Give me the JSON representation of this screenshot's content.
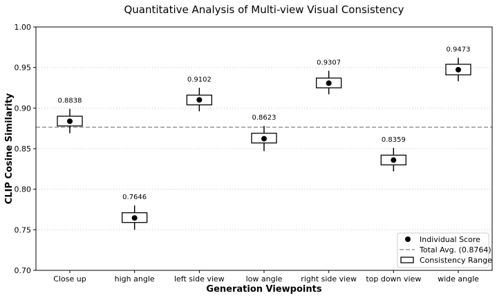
{
  "chart_data": {
    "type": "scatter",
    "title": "Quantitative Analysis of Multi-view Visual Consistency",
    "xlabel": "Generation Viewpoints",
    "ylabel": "CLIP Cosine Similarity",
    "ylim": [
      0.7,
      1.0
    ],
    "yticks": [
      "0.70",
      "0.75",
      "0.80",
      "0.85",
      "0.90",
      "0.95",
      "1.00"
    ],
    "grid": true,
    "categories": [
      "Close up",
      "high angle",
      "left side view",
      "low angle",
      "right side view",
      "top down view",
      "wide angle"
    ],
    "values": [
      0.8838,
      0.7646,
      0.9102,
      0.8623,
      0.9307,
      0.8359,
      0.9473
    ],
    "value_labels": [
      "0.8838",
      "0.7646",
      "0.9102",
      "0.8623",
      "0.9307",
      "0.8359",
      "0.9473"
    ],
    "consistency_range": [
      [
        0.878,
        0.89
      ],
      [
        0.759,
        0.771
      ],
      [
        0.904,
        0.916
      ],
      [
        0.857,
        0.869
      ],
      [
        0.925,
        0.937
      ],
      [
        0.83,
        0.842
      ],
      [
        0.941,
        0.954
      ]
    ],
    "whisker_range": [
      [
        0.869,
        0.899
      ],
      [
        0.75,
        0.78
      ],
      [
        0.896,
        0.925
      ],
      [
        0.847,
        0.878
      ],
      [
        0.917,
        0.946
      ],
      [
        0.822,
        0.851
      ],
      [
        0.933,
        0.962
      ]
    ],
    "total_avg": 0.8764,
    "legend": {
      "placement": "bottom-right",
      "entries": [
        "Individual Score",
        "Total Avg. (0.8764)",
        "Consistency Range"
      ]
    }
  }
}
